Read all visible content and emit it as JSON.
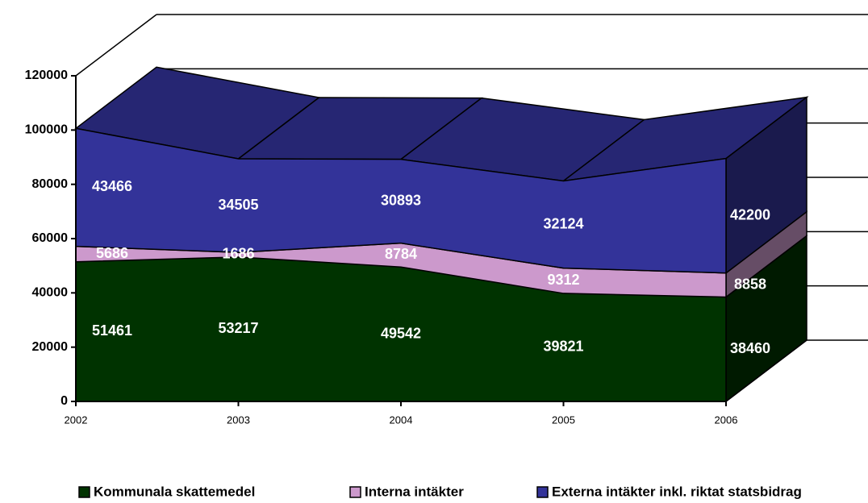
{
  "chart_data": {
    "type": "area3d",
    "categories": [
      "2002",
      "2003",
      "2004",
      "2005",
      "2006"
    ],
    "series": [
      {
        "name": "Kommunala skattemedel",
        "color": "#003300",
        "values": [
          51461,
          53217,
          49542,
          39821,
          38460
        ]
      },
      {
        "name": "Interna intäkter",
        "color": "#cc99cc",
        "values": [
          5686,
          1686,
          8784,
          9312,
          8858
        ]
      },
      {
        "name": "Externa intäkter inkl. riktat statsbidrag",
        "color": "#333399",
        "values": [
          43466,
          34505,
          30893,
          32124,
          42200
        ]
      }
    ],
    "stacked": true,
    "ylim": [
      0,
      120000
    ],
    "yticks": [
      0,
      20000,
      40000,
      60000,
      80000,
      100000,
      120000
    ],
    "legend": "bottom"
  }
}
